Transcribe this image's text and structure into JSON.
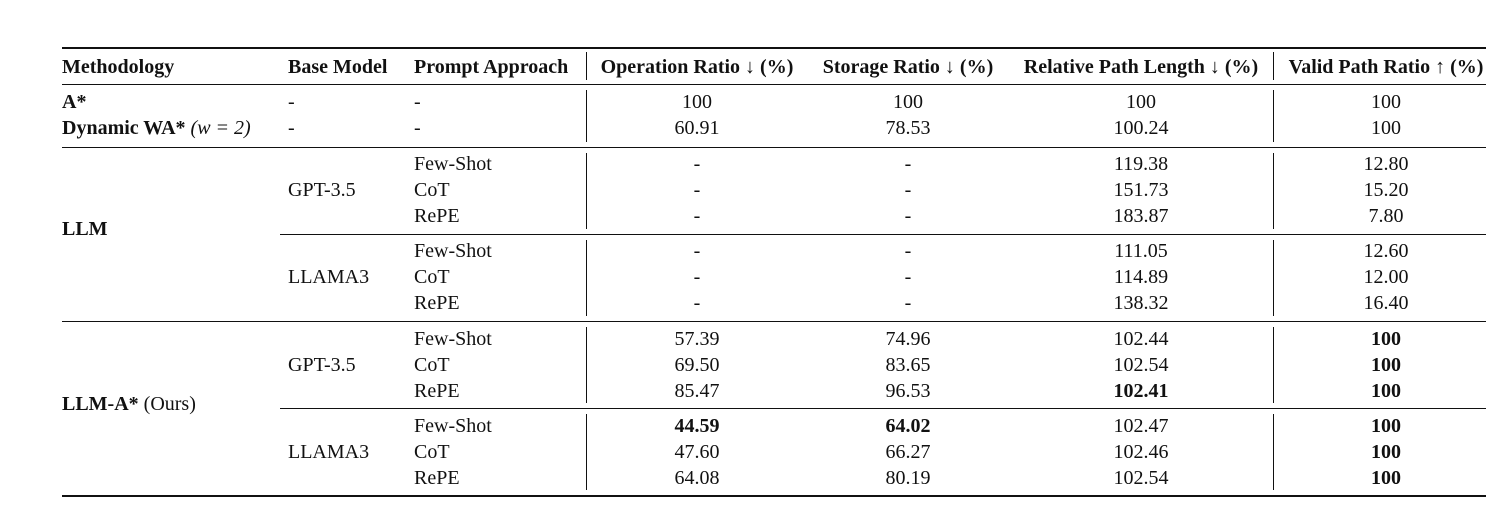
{
  "headers": {
    "methodology": "Methodology",
    "base_model": "Base Model",
    "prompt_approach": "Prompt Approach",
    "operation_ratio": "Operation Ratio ↓ (%)",
    "storage_ratio": "Storage Ratio ↓ (%)",
    "relative_path_length": "Relative Path Length ↓ (%)",
    "valid_path_ratio": "Valid Path Ratio ↑ (%)"
  },
  "baselines": [
    {
      "method": "A*",
      "method_suffix": "",
      "base": "-",
      "prompt": "-",
      "op": "100",
      "storage": "100",
      "path": "100",
      "valid": "100"
    },
    {
      "method": "Dynamic WA*",
      "method_suffix": "(w = 2)",
      "base": "-",
      "prompt": "-",
      "op": "60.91",
      "storage": "78.53",
      "path": "100.24",
      "valid": "100"
    }
  ],
  "llm": {
    "label": "LLM",
    "groups": [
      {
        "base": "GPT-3.5",
        "rows": [
          {
            "prompt": "Few-Shot",
            "op": "-",
            "storage": "-",
            "path": "119.38",
            "valid": "12.80"
          },
          {
            "prompt": "CoT",
            "op": "-",
            "storage": "-",
            "path": "151.73",
            "valid": "15.20"
          },
          {
            "prompt": "RePE",
            "op": "-",
            "storage": "-",
            "path": "183.87",
            "valid": "7.80"
          }
        ]
      },
      {
        "base": "LLAMA3",
        "rows": [
          {
            "prompt": "Few-Shot",
            "op": "-",
            "storage": "-",
            "path": "111.05",
            "valid": "12.60"
          },
          {
            "prompt": "CoT",
            "op": "-",
            "storage": "-",
            "path": "114.89",
            "valid": "12.00"
          },
          {
            "prompt": "RePE",
            "op": "-",
            "storage": "-",
            "path": "138.32",
            "valid": "16.40"
          }
        ]
      }
    ]
  },
  "llm_astar": {
    "label": "LLM-A*",
    "label_suffix": "(Ours)",
    "groups": [
      {
        "base": "GPT-3.5",
        "rows": [
          {
            "prompt": "Few-Shot",
            "op": "57.39",
            "storage": "74.96",
            "path": "102.44",
            "valid": "100"
          },
          {
            "prompt": "CoT",
            "op": "69.50",
            "storage": "83.65",
            "path": "102.54",
            "valid": "100"
          },
          {
            "prompt": "RePE",
            "op": "85.47",
            "storage": "96.53",
            "path": "102.41",
            "valid": "100"
          }
        ]
      },
      {
        "base": "LLAMA3",
        "rows": [
          {
            "prompt": "Few-Shot",
            "op": "44.59",
            "storage": "64.02",
            "path": "102.47",
            "valid": "100"
          },
          {
            "prompt": "CoT",
            "op": "47.60",
            "storage": "66.27",
            "path": "102.46",
            "valid": "100"
          },
          {
            "prompt": "RePE",
            "op": "64.08",
            "storage": "80.19",
            "path": "102.54",
            "valid": "100"
          }
        ]
      }
    ]
  }
}
